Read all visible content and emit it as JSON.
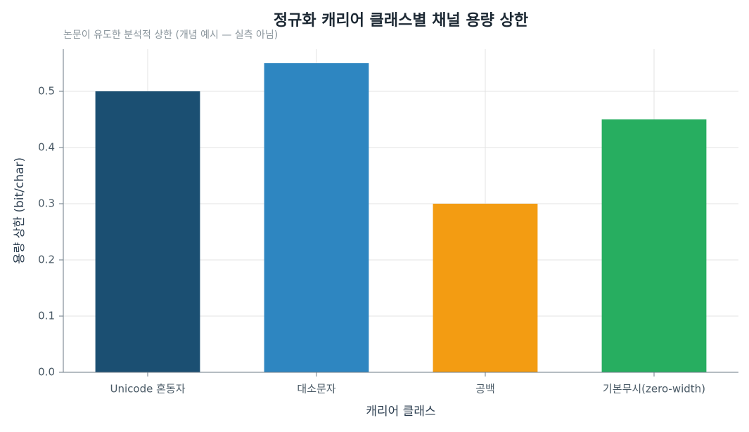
{
  "chart_data": {
    "type": "bar",
    "title": "정규화 캐리어 클래스별 채널 용량 상한",
    "subtitle": "논문이 유도한 분석적 상한 (개념 예시 — 실측 아님)",
    "x_label": "캐리어 클래스",
    "y_label": "용량 상한 (bit/char)",
    "categories": [
      "Unicode 혼동자",
      "대소문자",
      "공백",
      "기본무시(zero-width)"
    ],
    "values": [
      0.5,
      0.55,
      0.3,
      0.45
    ],
    "colors": [
      "#1b4f72",
      "#2e86c1",
      "#f39c12",
      "#27ae60"
    ],
    "ylim": [
      0,
      0.575
    ],
    "yticks": [
      {
        "value": 0,
        "label": "0.0"
      },
      0.1,
      0.2,
      0.3,
      0.4,
      0.5
    ],
    "grid": true
  }
}
